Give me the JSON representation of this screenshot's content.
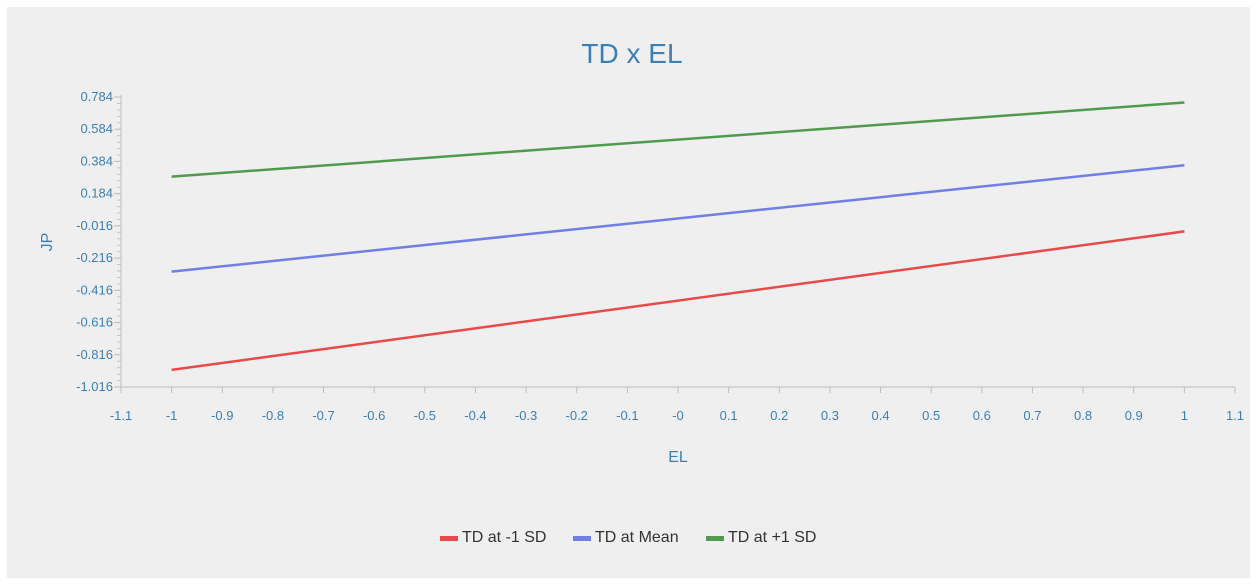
{
  "chart_data": {
    "type": "line",
    "title": "TD x EL",
    "xlabel": "EL",
    "ylabel": "JP",
    "xlim": [
      -1.1,
      1.1
    ],
    "ylim": [
      -1.016,
      0.784
    ],
    "x_ticks": [
      "-1.1",
      "-1",
      "-0.9",
      "-0.8",
      "-0.7",
      "-0.6",
      "-0.5",
      "-0.4",
      "-0.3",
      "-0.2",
      "-0.1",
      "-0",
      "0.1",
      "0.2",
      "0.3",
      "0.4",
      "0.5",
      "0.6",
      "0.7",
      "0.8",
      "0.9",
      "1",
      "1.1"
    ],
    "y_ticks": [
      "0.784",
      "0.584",
      "0.384",
      "0.184",
      "-0.016",
      "-0.216",
      "-0.416",
      "-0.616",
      "-0.816",
      "-1.016"
    ],
    "grid": false,
    "legend_position": "bottom",
    "series": [
      {
        "name": "TD at -1 SD",
        "color": "#e84a4a",
        "x": [
          -1,
          1
        ],
        "y": [
          -0.91,
          -0.05
        ]
      },
      {
        "name": "TD at Mean",
        "color": "#6f7fe6",
        "x": [
          -1,
          1
        ],
        "y": [
          -0.3,
          0.36
        ]
      },
      {
        "name": "TD at +1 SD",
        "color": "#4f9a4f",
        "x": [
          -1,
          1
        ],
        "y": [
          0.29,
          0.75
        ]
      }
    ]
  }
}
